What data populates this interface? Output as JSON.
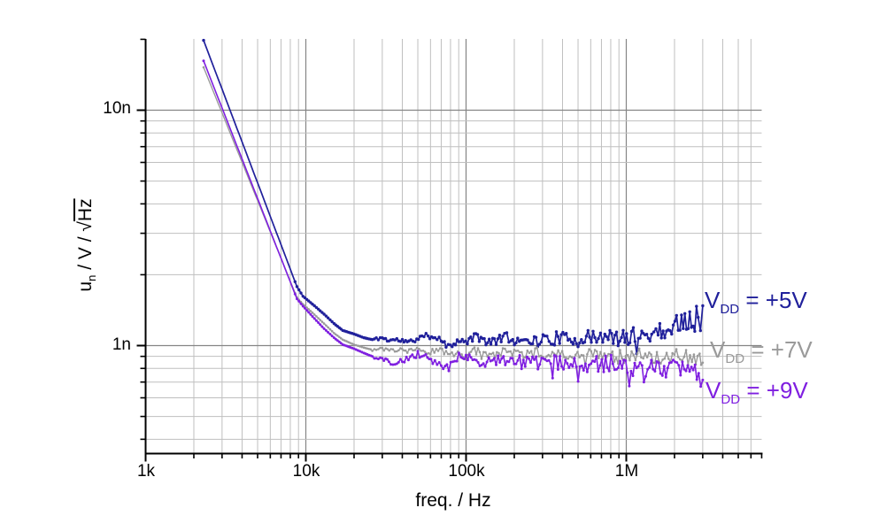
{
  "figure": {
    "background": "#ffffff",
    "colors": {
      "axis": "#000000",
      "grid_minor": "#bfbfbf",
      "grid_major": "#858585"
    }
  },
  "axes": {
    "x": {
      "title": "freq. / Hz",
      "scale": "log",
      "ticks": [
        {
          "hz": 1000,
          "label": "1k"
        },
        {
          "hz": 10000,
          "label": "10k"
        },
        {
          "hz": 100000,
          "label": "100k"
        },
        {
          "hz": 1000000,
          "label": "1M"
        }
      ]
    },
    "y": {
      "title": {
        "base": "u",
        "sub": "n",
        "mid": " / V / ",
        "sqrt_sign": "√",
        "radical": "Hz"
      },
      "title_plain": "u_n / V / √Hz",
      "scale": "log",
      "ticks": [
        {
          "nv": 10,
          "label": "10n"
        },
        {
          "nv": 1,
          "label": "1n"
        }
      ]
    }
  },
  "chart_data": {
    "type": "line",
    "title": "",
    "xlabel": "freq. / Hz",
    "ylabel": "u_n / V / √Hz",
    "x_scale": "log",
    "y_scale": "log",
    "xlim_hz": [
      1000,
      7000000
    ],
    "ylim_nv_per_sqrthz": [
      0.35,
      20
    ],
    "grid": "major+minor",
    "legend_position": "inside-right",
    "units": "points are [frequency_Hz, noise_density_nV_per_sqrtHz]",
    "series": [
      {
        "name": "VDD = +5V",
        "legend": {
          "main": "V",
          "sub": "DD",
          "rest": " = +5V"
        },
        "color": "#20209b",
        "seed": 11,
        "marker_min_hz": 8500,
        "marker_r": 1.7,
        "line_w": 1.7,
        "noise": {
          "start_hz": 26000,
          "amp0": 0.006,
          "amp1": 0.045,
          "spike_prob": 0.04,
          "spike_extra": 0.05
        },
        "points": [
          [
            2300,
            19.8
          ],
          [
            8800,
            1.78
          ],
          [
            9600,
            1.62
          ],
          [
            11000,
            1.5
          ],
          [
            13000,
            1.36
          ],
          [
            15000,
            1.24
          ],
          [
            17000,
            1.16
          ],
          [
            20000,
            1.12
          ],
          [
            23000,
            1.08
          ],
          [
            26000,
            1.06
          ],
          [
            30000,
            1.08
          ],
          [
            33000,
            1.05
          ],
          [
            36000,
            1.06
          ],
          [
            40000,
            1.05
          ],
          [
            44000,
            1.03
          ],
          [
            48000,
            1.06
          ],
          [
            53000,
            1.09
          ],
          [
            58000,
            1.1
          ],
          [
            64000,
            1.09
          ],
          [
            70000,
            1.07
          ],
          [
            75000,
            0.99
          ],
          [
            80000,
            1.02
          ],
          [
            88000,
            1.04
          ],
          [
            97000,
            1.03
          ],
          [
            107000,
            1.07
          ],
          [
            118000,
            1.09
          ],
          [
            130000,
            1.05
          ],
          [
            143000,
            1.03
          ],
          [
            158000,
            1.07
          ],
          [
            174000,
            1.09
          ],
          [
            191000,
            1.06
          ],
          [
            210000,
            1.05
          ],
          [
            231000,
            1.09
          ],
          [
            254000,
            1.06
          ],
          [
            280000,
            1.04
          ],
          [
            310000,
            1.07
          ],
          [
            340000,
            1.05
          ],
          [
            375000,
            1.09
          ],
          [
            412000,
            1.06
          ],
          [
            455000,
            1.08
          ],
          [
            500000,
            1.05
          ],
          [
            550000,
            1.09
          ],
          [
            605000,
            1.07
          ],
          [
            670000,
            1.1
          ],
          [
            735000,
            1.07
          ],
          [
            810000,
            1.09
          ],
          [
            890000,
            1.06
          ],
          [
            980000,
            1.08
          ],
          [
            1080000,
            1.1
          ],
          [
            1190000,
            1.12
          ],
          [
            1310000,
            1.1
          ],
          [
            1440000,
            1.13
          ],
          [
            1580000,
            1.15
          ],
          [
            1740000,
            1.17
          ],
          [
            1920000,
            1.2
          ],
          [
            2110000,
            1.24
          ],
          [
            2320000,
            1.28
          ],
          [
            2550000,
            1.32
          ],
          [
            2810000,
            1.36
          ],
          [
            3000000,
            1.4
          ]
        ]
      },
      {
        "name": "VDD = +7V",
        "legend": {
          "main": "V",
          "sub": "DD",
          "rest": " = +7V"
        },
        "color": "#9a9a9a",
        "seed": 23,
        "marker_min_hz": 8500,
        "marker_r": 1.3,
        "line_w": 1.4,
        "noise": {
          "start_hz": 26000,
          "amp0": 0.006,
          "amp1": 0.038,
          "spike_prob": 0.05,
          "spike_extra": 0.05
        },
        "points": [
          [
            2300,
            15.2
          ],
          [
            8800,
            1.6
          ],
          [
            9600,
            1.5
          ],
          [
            11000,
            1.38
          ],
          [
            13000,
            1.24
          ],
          [
            15000,
            1.13
          ],
          [
            17000,
            1.06
          ],
          [
            20000,
            1.01
          ],
          [
            23000,
            0.98
          ],
          [
            26000,
            0.96
          ],
          [
            30000,
            0.97
          ],
          [
            34000,
            0.95
          ],
          [
            38000,
            0.96
          ],
          [
            43000,
            0.94
          ],
          [
            48000,
            0.97
          ],
          [
            54000,
            0.95
          ],
          [
            60000,
            0.94
          ],
          [
            67000,
            0.96
          ],
          [
            75000,
            0.94
          ],
          [
            84000,
            0.93
          ],
          [
            94000,
            0.9
          ],
          [
            100000,
            0.89
          ],
          [
            110000,
            0.95
          ],
          [
            125000,
            0.94
          ],
          [
            140000,
            0.92
          ],
          [
            160000,
            0.93
          ],
          [
            180000,
            0.95
          ],
          [
            205000,
            0.93
          ],
          [
            235000,
            0.92
          ],
          [
            270000,
            0.94
          ],
          [
            310000,
            0.92
          ],
          [
            355000,
            0.93
          ],
          [
            410000,
            0.91
          ],
          [
            470000,
            0.93
          ],
          [
            540000,
            0.92
          ],
          [
            620000,
            0.91
          ],
          [
            710000,
            0.93
          ],
          [
            820000,
            0.91
          ],
          [
            940000,
            0.92
          ],
          [
            1080000,
            0.91
          ],
          [
            1240000,
            0.92
          ],
          [
            1430000,
            0.91
          ],
          [
            1640000,
            0.9
          ],
          [
            1890000,
            0.91
          ],
          [
            2170000,
            0.89
          ],
          [
            2500000,
            0.88
          ],
          [
            2870000,
            0.87
          ],
          [
            3000000,
            0.88
          ]
        ]
      },
      {
        "name": "VDD = +9V",
        "legend": {
          "main": "V",
          "sub": "DD",
          "rest": " = +9V"
        },
        "color": "#7f1fe0",
        "seed": 37,
        "marker_min_hz": 8500,
        "marker_r": 1.5,
        "line_w": 1.6,
        "noise": {
          "start_hz": 26000,
          "amp0": 0.007,
          "amp1": 0.052,
          "spike_prob": 0.1,
          "spike_extra": 0.1
        },
        "points": [
          [
            2300,
            16.2
          ],
          [
            8800,
            1.58
          ],
          [
            9600,
            1.47
          ],
          [
            11000,
            1.33
          ],
          [
            13000,
            1.18
          ],
          [
            15000,
            1.08
          ],
          [
            17000,
            1.01
          ],
          [
            20000,
            0.97
          ],
          [
            23000,
            0.93
          ],
          [
            26000,
            0.9
          ],
          [
            30000,
            0.88
          ],
          [
            33000,
            0.85
          ],
          [
            36000,
            0.84
          ],
          [
            40000,
            0.86
          ],
          [
            45000,
            0.89
          ],
          [
            50000,
            0.92
          ],
          [
            56000,
            0.9
          ],
          [
            62000,
            0.86
          ],
          [
            68000,
            0.83
          ],
          [
            72000,
            0.82
          ],
          [
            78000,
            0.85
          ],
          [
            85000,
            0.88
          ],
          [
            93000,
            0.9
          ],
          [
            100000,
            0.91
          ],
          [
            110000,
            0.88
          ],
          [
            122000,
            0.86
          ],
          [
            135000,
            0.87
          ],
          [
            150000,
            0.89
          ],
          [
            167000,
            0.86
          ],
          [
            185000,
            0.85
          ],
          [
            205000,
            0.87
          ],
          [
            228000,
            0.84
          ],
          [
            253000,
            0.86
          ],
          [
            281000,
            0.84
          ],
          [
            312000,
            0.86
          ],
          [
            347000,
            0.85
          ],
          [
            385000,
            0.84
          ],
          [
            428000,
            0.86
          ],
          [
            475000,
            0.84
          ],
          [
            528000,
            0.85
          ],
          [
            586000,
            0.83
          ],
          [
            651000,
            0.85
          ],
          [
            723000,
            0.83
          ],
          [
            803000,
            0.84
          ],
          [
            892000,
            0.82
          ],
          [
            991000,
            0.84
          ],
          [
            1100000,
            0.82
          ],
          [
            1220000,
            0.83
          ],
          [
            1360000,
            0.81
          ],
          [
            1510000,
            0.82
          ],
          [
            1680000,
            0.8
          ],
          [
            1860000,
            0.79
          ],
          [
            2070000,
            0.78
          ],
          [
            2300000,
            0.77
          ],
          [
            2550000,
            0.75
          ],
          [
            2830000,
            0.73
          ],
          [
            3000000,
            0.72
          ]
        ]
      }
    ]
  }
}
